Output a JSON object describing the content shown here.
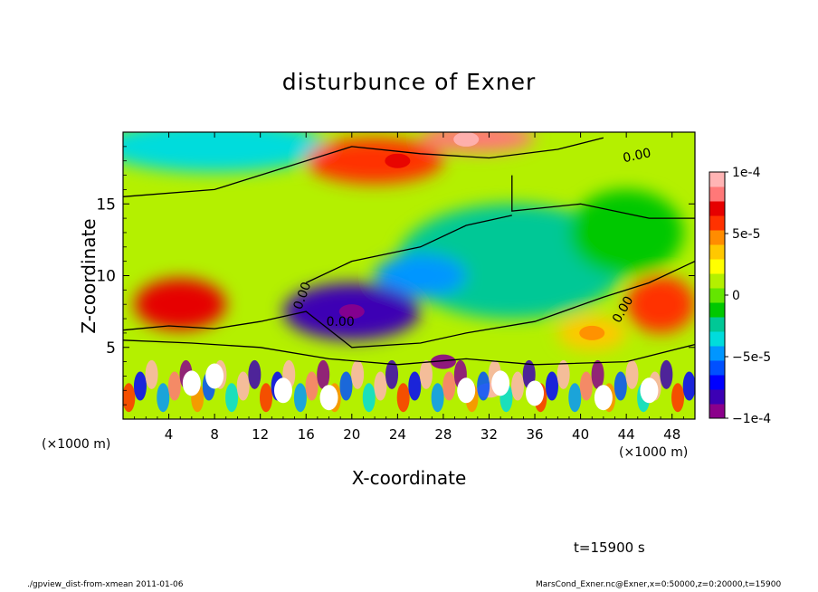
{
  "chart_data": {
    "type": "heatmap",
    "title": "disturbunce of Exner",
    "xlabel": "X-coordinate",
    "ylabel": "Z-coordinate",
    "x_unit_label": "(×1000 m)",
    "x_ticks": [
      4,
      8,
      12,
      16,
      20,
      24,
      28,
      32,
      36,
      40,
      44,
      48
    ],
    "y_ticks": [
      5,
      10,
      15
    ],
    "xlim": [
      0,
      50
    ],
    "ylim": [
      0,
      20
    ],
    "colorbar": {
      "ticks": [
        "1e-4",
        "5e-5",
        "0",
        "−5e-5",
        "−1e-4"
      ],
      "tick_values": [
        0.0001,
        5e-05,
        0,
        -5e-05,
        -0.0001
      ],
      "range": [
        -0.0001,
        0.0001
      ]
    },
    "contour_labels": [
      "0.00",
      "0.00",
      "0.00",
      "0.00"
    ],
    "features": [
      {
        "x": 5,
        "z": 8,
        "value": 7e-05
      },
      {
        "x": 20,
        "z": 7.5,
        "value": -0.0001
      },
      {
        "x": 26,
        "z": 10,
        "value": -5e-05
      },
      {
        "x": 24,
        "z": 18,
        "value": 7e-05
      },
      {
        "x": 30,
        "z": 19.5,
        "value": 9e-05
      },
      {
        "x": 4,
        "z": 19,
        "value": -4e-05
      },
      {
        "x": 47,
        "z": 8,
        "value": 6e-05
      },
      {
        "x": 41,
        "z": 6,
        "value": 5e-05
      },
      {
        "x": 32,
        "z": 2,
        "value": 0.0001
      },
      {
        "x": 28,
        "z": 4,
        "value": -0.0001
      }
    ],
    "annotation_time": "t=15900 s"
  },
  "colors": {
    "scale": [
      "#8b008b",
      "#3c00b4",
      "#0000ff",
      "#0050ff",
      "#0096ff",
      "#00dcdc",
      "#00c896",
      "#00c800",
      "#64e600",
      "#b4f000",
      "#ffff00",
      "#ffc800",
      "#ff8c00",
      "#ff3200",
      "#e60000",
      "#ff7878",
      "#ffb4b4"
    ],
    "contour": "#000000"
  },
  "footer": {
    "left": "./gpview_dist-from-xmean  2011-01-06",
    "right": "MarsCond_Exner.nc@Exner,x=0:50000,z=0:20000,t=15900"
  }
}
